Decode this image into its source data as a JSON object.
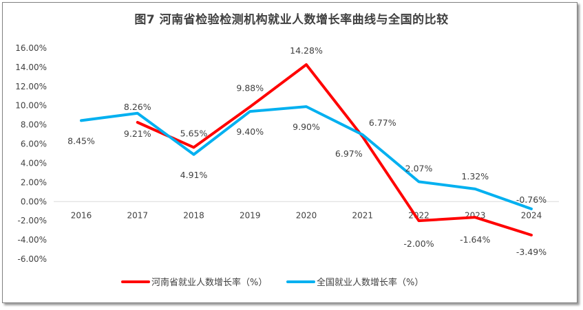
{
  "chart_data": {
    "type": "line",
    "title": "图7  河南省检验检测机构就业人数增长率曲线与全国的比较",
    "categories": [
      "2016",
      "2017",
      "2018",
      "2019",
      "2020",
      "2021",
      "2022",
      "2023",
      "2024"
    ],
    "ylim": [
      -6,
      16
    ],
    "yticks": [
      "16.00%",
      "14.00%",
      "12.00%",
      "10.00%",
      "8.00%",
      "6.00%",
      "4.00%",
      "2.00%",
      "0.00%",
      "-2.00%",
      "-4.00%",
      "-6.00%"
    ],
    "grid": false,
    "legend_position": "bottom",
    "series": [
      {
        "name": "河南省就业人数增长率（%）",
        "color": "#ff0000",
        "values": [
          null,
          8.26,
          5.65,
          9.88,
          14.28,
          6.77,
          -2.0,
          -1.64,
          -3.49
        ],
        "labels": [
          "",
          "8.26%",
          "5.65%",
          "9.88%",
          "14.28%",
          "6.77%",
          "-2.00%",
          "-1.64%",
          "-3.49%"
        ]
      },
      {
        "name": "全国就业人数增长率（%）",
        "color": "#00b0f0",
        "values": [
          8.45,
          9.21,
          4.91,
          9.4,
          9.9,
          6.97,
          2.07,
          1.32,
          -0.76
        ],
        "labels": [
          "8.45%",
          "9.21%",
          "4.91%",
          "9.40%",
          "9.90%",
          "6.97%",
          "2.07%",
          "1.32%",
          "-0.76%"
        ]
      }
    ]
  }
}
